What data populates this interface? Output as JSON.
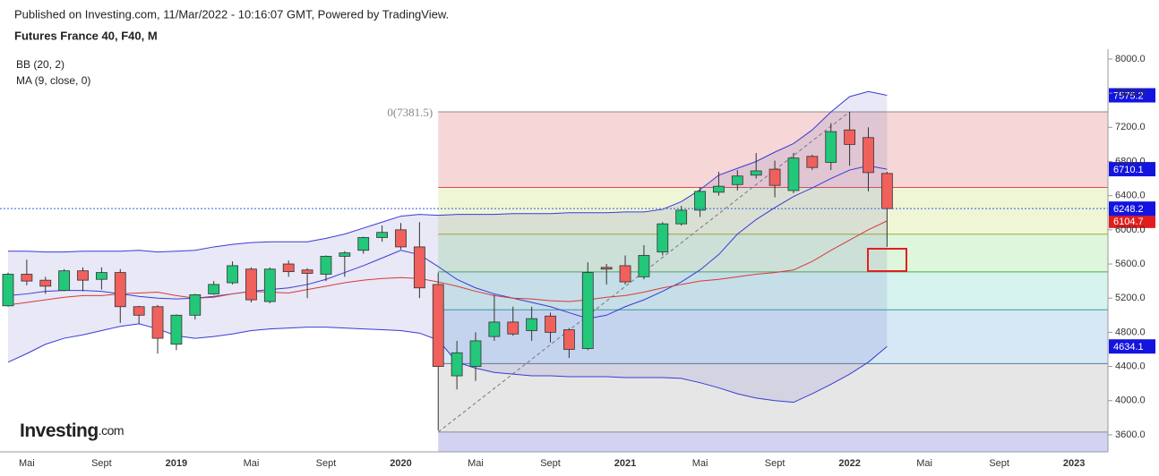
{
  "header": {
    "published": "Published on Investing.com, 11/Mar/2022 - 10:16:07 GMT, Powered by TradingView.",
    "symbol": "Futures France 40, F40, M"
  },
  "logo": {
    "name": "Investing",
    "suffix": ".com"
  },
  "chart_data": {
    "type": "candlestick",
    "indicators": [
      "BB (20, 2)",
      "MA (9, close, 0)"
    ],
    "categories": [
      null,
      "Mai",
      null,
      null,
      null,
      "Sept",
      null,
      null,
      null,
      "2019",
      null,
      null,
      null,
      "Mai",
      null,
      null,
      null,
      "Sept",
      null,
      null,
      null,
      "2020",
      null,
      null,
      null,
      "Mai",
      null,
      null,
      null,
      "Sept",
      null,
      null,
      null,
      "2021",
      null,
      null,
      null,
      "Mai",
      null,
      null,
      null,
      "Sept",
      null,
      null,
      null,
      "2022",
      null,
      null,
      null,
      "Mai",
      null,
      null,
      null,
      "Sept",
      null,
      null,
      null,
      "2023"
    ],
    "open": [
      5110,
      5480,
      5410,
      5290,
      5520,
      5420,
      5500,
      5100,
      5100,
      4660,
      5000,
      5250,
      5380,
      5540,
      5160,
      5600,
      5530,
      5480,
      5690,
      5760,
      5910,
      6000,
      5800,
      5360,
      4290,
      4400,
      4750,
      4920,
      4820,
      4990,
      4830,
      4610,
      5560,
      5580,
      5450,
      5740,
      6070,
      6230,
      6440,
      6530,
      6640,
      6710,
      6460,
      6860,
      6790,
      7170,
      7080,
      6660,
      null,
      null,
      null,
      null,
      null,
      null,
      null,
      null,
      null,
      null
    ],
    "high": [
      5500,
      5650,
      5450,
      5540,
      5560,
      5560,
      5540,
      5110,
      5120,
      5010,
      5250,
      5400,
      5630,
      5560,
      5560,
      5640,
      5550,
      5700,
      5750,
      5920,
      6050,
      6080,
      6090,
      5500,
      4700,
      4800,
      5240,
      5100,
      5100,
      5030,
      4850,
      5620,
      5600,
      5700,
      5820,
      6090,
      6280,
      6500,
      6680,
      6700,
      6900,
      6810,
      6900,
      6880,
      7250,
      7380,
      7200,
      6680,
      null,
      null,
      null,
      null,
      null,
      null,
      null,
      null,
      null,
      null
    ],
    "low": [
      5100,
      5350,
      5250,
      5280,
      5280,
      5300,
      4910,
      4900,
      4550,
      4590,
      4950,
      5240,
      5360,
      5150,
      5140,
      5450,
      5200,
      5400,
      5450,
      5720,
      5860,
      5770,
      5200,
      3650,
      4130,
      4230,
      4700,
      4760,
      4700,
      4680,
      4500,
      4590,
      5360,
      5360,
      5420,
      5700,
      6050,
      6150,
      6400,
      6460,
      6600,
      6380,
      6430,
      6700,
      6700,
      6750,
      6450,
      5800,
      null,
      null,
      null,
      null,
      null,
      null,
      null,
      null,
      null,
      null
    ],
    "close": [
      5480,
      5400,
      5340,
      5520,
      5410,
      5500,
      5100,
      5000,
      4730,
      5000,
      5240,
      5360,
      5580,
      5180,
      5540,
      5510,
      5490,
      5690,
      5730,
      5910,
      5970,
      5800,
      5320,
      4400,
      4560,
      4700,
      4920,
      4780,
      4960,
      4800,
      4600,
      5500,
      5540,
      5390,
      5700,
      6070,
      6230,
      6450,
      6510,
      6630,
      6690,
      6520,
      6840,
      6730,
      7150,
      7000,
      6670,
      6248.2,
      null,
      null,
      null,
      null,
      null,
      null,
      null,
      null,
      null,
      null
    ],
    "up_color": "#22c77a",
    "down_color": "#f0605c",
    "series": [
      {
        "name": "upper",
        "color": "#3a3ad8",
        "tag_color": "#1414e0",
        "values": [
          5750,
          5750,
          5740,
          5740,
          5750,
          5750,
          5750,
          5760,
          5740,
          5750,
          5760,
          5800,
          5830,
          5850,
          5860,
          5860,
          5860,
          5900,
          5950,
          6020,
          6090,
          6160,
          6180,
          6170,
          6180,
          6180,
          6180,
          6190,
          6190,
          6190,
          6200,
          6200,
          6200,
          6210,
          6210,
          6240,
          6330,
          6470,
          6640,
          6720,
          6800,
          6910,
          7010,
          7170,
          7380,
          7560,
          7620,
          7575.2,
          null,
          null,
          null,
          null,
          null,
          null,
          null,
          null,
          null,
          null
        ]
      },
      {
        "name": "basis",
        "color": "#3a3ad8",
        "tag_color": "#1414e0",
        "values": [
          5230,
          5250,
          5280,
          5290,
          5290,
          5280,
          5250,
          5220,
          5200,
          5190,
          5200,
          5220,
          5250,
          5280,
          5300,
          5320,
          5360,
          5420,
          5500,
          5580,
          5670,
          5760,
          5710,
          5570,
          5420,
          5320,
          5250,
          5200,
          5150,
          5100,
          5030,
          4960,
          5000,
          5100,
          5180,
          5280,
          5390,
          5530,
          5710,
          5950,
          6120,
          6260,
          6390,
          6490,
          6600,
          6700,
          6750,
          6710.1,
          null,
          null,
          null,
          null,
          null,
          null,
          null,
          null,
          null,
          null
        ]
      },
      {
        "name": "lower",
        "color": "#3a3ad8",
        "tag_color": "#1414e0",
        "values": [
          4450,
          4550,
          4660,
          4730,
          4770,
          4820,
          4870,
          4900,
          4840,
          4760,
          4730,
          4750,
          4780,
          4820,
          4840,
          4850,
          4860,
          4860,
          4850,
          4840,
          4830,
          4820,
          4790,
          4710,
          4450,
          4380,
          4330,
          4310,
          4290,
          4290,
          4280,
          4280,
          4280,
          4270,
          4270,
          4270,
          4260,
          4210,
          4150,
          4080,
          4030,
          4000,
          3980,
          4080,
          4190,
          4310,
          4450,
          4634.1,
          null,
          null,
          null,
          null,
          null,
          null,
          null,
          null,
          null,
          null
        ]
      },
      {
        "name": "ma",
        "color": "#d63a3a",
        "tag_color": "#e01e1e",
        "values": [
          5120,
          5150,
          5180,
          5210,
          5230,
          5230,
          5250,
          5260,
          5270,
          5230,
          5200,
          5210,
          5250,
          5280,
          5270,
          5260,
          5300,
          5340,
          5380,
          5410,
          5430,
          5440,
          5430,
          5390,
          5340,
          5280,
          5230,
          5200,
          5190,
          5170,
          5160,
          5180,
          5210,
          5230,
          5270,
          5320,
          5360,
          5400,
          5420,
          5450,
          5480,
          5500,
          5530,
          5630,
          5760,
          5880,
          6000,
          6104.7,
          null,
          null,
          null,
          null,
          null,
          null,
          null,
          null,
          null,
          null
        ]
      }
    ],
    "band_fill": "rgba(110,110,200,0.16)",
    "fib": {
      "start": 23,
      "end": 45,
      "levels": [
        {
          "value": 7381.5,
          "label": "0(7381.5)"
        },
        6496.6,
        5949,
        5506.7,
        5064,
        4434,
        3632
      ],
      "line_colors": [
        "#8a8a8a",
        "#e04a4a",
        "#9cb02c",
        "#44b04c",
        "#3a9a9a",
        "#5a7a96",
        "#8a8a8a"
      ],
      "zone_colors": [
        "#f6d6d6",
        "#eef6d6",
        "#def6dc",
        "#d6f3ee",
        "#d6e8f6",
        "#e6e6e6",
        "#d2d3f2"
      ]
    },
    "price_line_color": "#3a5ad8",
    "ylim": [
      3400,
      8115
    ],
    "yticks": [
      {
        "value": 8000,
        "label": "8000.0"
      },
      {
        "value": 7600,
        "label": "7600.0"
      },
      {
        "value": 7200,
        "label": "7200.0"
      },
      {
        "value": 6800,
        "label": "6800.0"
      },
      {
        "value": 6400,
        "label": "6400.0"
      },
      {
        "value": 6000,
        "label": "6000.0"
      },
      {
        "value": 5600,
        "label": "5600.0"
      },
      {
        "value": 5200,
        "label": "5200.0"
      },
      {
        "value": 4800,
        "label": "4800.0"
      },
      {
        "value": 4400,
        "label": "4400.0"
      },
      {
        "value": 4000,
        "label": "4000.0"
      },
      {
        "value": 3600,
        "label": "3600.0"
      }
    ]
  }
}
